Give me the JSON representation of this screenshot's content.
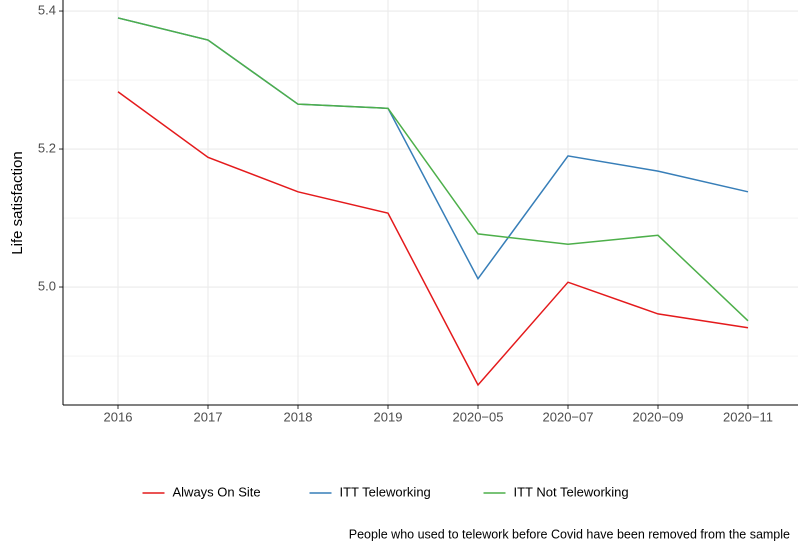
{
  "chart_data": {
    "type": "line",
    "ylabel": "Life satisfaction",
    "categories": [
      "2016",
      "2017",
      "2018",
      "2019",
      "2020−05",
      "2020−07",
      "2020−09",
      "2020−11"
    ],
    "series": [
      {
        "name": "Always On Site",
        "color": "#e41a1c",
        "values": [
          5.283,
          5.188,
          5.138,
          5.107,
          4.858,
          5.007,
          4.961,
          4.941
        ]
      },
      {
        "name": "ITT Teleworking",
        "color": "#377eb8",
        "values": [
          5.39,
          5.358,
          5.265,
          5.259,
          5.012,
          5.19,
          5.168,
          5.138
        ]
      },
      {
        "name": "ITT Not Teleworking",
        "color": "#4daf4a",
        "values": [
          5.39,
          5.358,
          5.265,
          5.259,
          5.077,
          5.062,
          5.075,
          4.951
        ]
      }
    ],
    "ylim": [
      4.829,
      5.416
    ],
    "yticks": [
      {
        "value": 5,
        "label": "5.0"
      },
      5.2,
      5.4
    ],
    "minor_yticks": [
      4.9,
      5.1,
      5.3
    ],
    "grid": true,
    "legend": "bottom",
    "caption": "People who used to telework before Covid have been removed from the sample"
  }
}
